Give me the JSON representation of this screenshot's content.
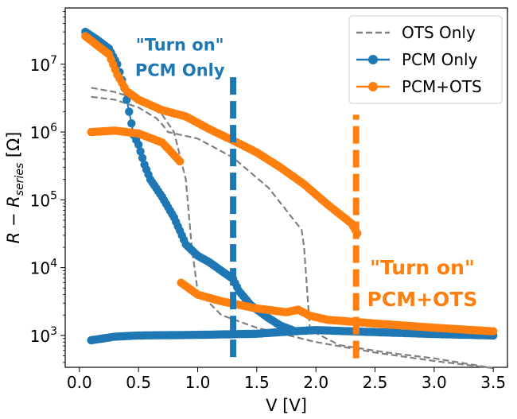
{
  "chart_data": {
    "type": "line",
    "title": "",
    "xlabel": "V [V]",
    "ylabel": "R − R_series [Ω]",
    "xlim": [
      -0.12,
      3.62
    ],
    "ylim_log10": [
      2.53,
      7.83
    ],
    "yscale": "log",
    "x_ticks": [
      {
        "value": 0.0,
        "label": "0.0"
      },
      {
        "value": 0.5,
        "label": "0.5"
      },
      {
        "value": 1.0,
        "label": "1.0"
      },
      {
        "value": 1.5,
        "label": "1.5"
      },
      {
        "value": 2.0,
        "label": "2.0"
      },
      {
        "value": 2.5,
        "label": "2.5"
      },
      {
        "value": 3.0,
        "label": "3.0"
      },
      {
        "value": 3.5,
        "label": "3.5"
      }
    ],
    "y_ticks": [
      {
        "exp": 3,
        "base": "10",
        "sup": "3"
      },
      {
        "exp": 4,
        "base": "10",
        "sup": "4"
      },
      {
        "exp": 5,
        "base": "10",
        "sup": "5"
      },
      {
        "exp": 6,
        "base": "10",
        "sup": "6"
      },
      {
        "exp": 7,
        "base": "10",
        "sup": "7"
      }
    ],
    "legend": {
      "position": "top-right",
      "entries": [
        {
          "label": "OTS Only",
          "color": "#808080",
          "style": "dashed"
        },
        {
          "label": "PCM Only",
          "color": "#1f77b4",
          "style": "marker-line"
        },
        {
          "label": "PCM+OTS",
          "color": "#ff7f0e",
          "style": "marker-line"
        }
      ]
    },
    "series": [
      {
        "name": "OTS Only",
        "style": "dashed",
        "color": "#808080",
        "curves": [
          {
            "x": [
              0.1,
              0.3,
              0.5,
              0.7,
              0.8,
              0.9,
              0.95,
              1.0,
              1.2,
              1.5,
              2.0,
              2.5,
              3.0,
              3.5
            ],
            "y": [
              4500000,
              3900000,
              3000000,
              1800000,
              1000000,
              200000,
              20000,
              4500,
              2000,
              1300,
              800,
              560,
              420,
              330
            ]
          },
          {
            "x": [
              0.1,
              0.3,
              0.5,
              0.65,
              0.7,
              0.75,
              1.0,
              1.3,
              1.6,
              1.88,
              1.9,
              1.95,
              2.2,
              2.6,
              3.0,
              3.5
            ],
            "y": [
              3300000,
              3000000,
              2300000,
              1600000,
              1300000,
              1000000,
              800000,
              420000,
              150000,
              36000,
              20000,
              1200,
              720,
              560,
              460,
              330
            ]
          }
        ]
      },
      {
        "name": "PCM Only",
        "style": "marker-line",
        "color": "#1f77b4",
        "curves": [
          {
            "x": [
              0.05,
              0.15,
              0.25,
              0.32,
              0.38,
              0.42,
              0.46,
              0.5,
              0.55,
              0.6,
              0.7,
              0.8,
              0.85,
              0.9,
              1.0,
              1.1,
              1.2,
              1.3,
              1.35,
              1.45,
              1.6,
              1.7,
              1.8
            ],
            "y": [
              30000000,
              23000000,
              17000000,
              10000000,
              4500000,
              2000000,
              900000,
              650000,
              330000,
              200000,
              110000,
              55000,
              35000,
              22000,
              15000,
              12000,
              9000,
              6800,
              4500,
              2800,
              1800,
              1400,
              1200
            ]
          },
          {
            "x": [
              0.1,
              0.3,
              0.5,
              1.0,
              1.5,
              1.8,
              2.0,
              2.5,
              3.0,
              3.5
            ],
            "y": [
              850,
              960,
              1000,
              1020,
              1060,
              1150,
              1200,
              1120,
              1050,
              1000
            ]
          }
        ]
      },
      {
        "name": "PCM+OTS",
        "style": "marker-line",
        "color": "#ff7f0e",
        "curves": [
          {
            "x": [
              0.05,
              0.15,
              0.25,
              0.32,
              0.4,
              0.5,
              0.7,
              0.9,
              1.1,
              1.3,
              1.5,
              1.7,
              1.9,
              2.1,
              2.3,
              2.35
            ],
            "y": [
              26000000,
              19000000,
              14000000,
              7000000,
              4000000,
              3000000,
              2100000,
              1700000,
              1100000,
              750000,
              500000,
              300000,
              170000,
              85000,
              45000,
              32000
            ]
          },
          {
            "x": [
              0.1,
              0.3,
              0.5,
              0.7,
              0.85
            ],
            "y": [
              1000000,
              1050000,
              950000,
              700000,
              370000
            ]
          },
          {
            "x": [
              0.86,
              1.0,
              1.2,
              1.5,
              1.75,
              1.85,
              1.95,
              2.1,
              2.5,
              3.0,
              3.5
            ],
            "y": [
              6000,
              4000,
              3200,
              2500,
              2200,
              2400,
              1950,
              1700,
              1500,
              1300,
              1150
            ]
          }
        ]
      }
    ],
    "markers": [
      {
        "x": 1.3,
        "y_from": 480,
        "y_to": 6500000,
        "color": "#1f77b4"
      },
      {
        "x": 2.34,
        "y_from": 460,
        "y_to": 1800000,
        "color": "#ff7f0e"
      }
    ],
    "annotations": [
      {
        "line1": "\"Turn on\"",
        "line2": "PCM Only",
        "color": "#1f77b4",
        "anchor_x": 0.85,
        "anchor_log10y": 7.2
      },
      {
        "line1": "\"Turn on\"",
        "line2": "PCM+OTS",
        "color": "#ff7f0e",
        "anchor_x": 2.9,
        "anchor_log10y": 3.9
      }
    ]
  }
}
